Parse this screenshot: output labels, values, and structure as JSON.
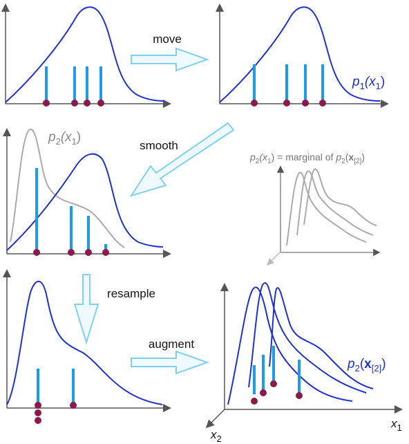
{
  "steps": {
    "move": "move",
    "smooth": "smooth",
    "resample": "resample",
    "augment": "augment"
  },
  "labels": {
    "p1_x1": [
      "p",
      "1",
      "(x",
      "1",
      ")"
    ],
    "p2_x1": [
      "p",
      "2",
      "(x",
      "1",
      ")"
    ],
    "marginal": [
      "p",
      "2",
      "(x",
      "1",
      ") = marginal of ",
      "p",
      "2",
      "(",
      "x",
      "[2]",
      ")"
    ],
    "p2_x2": [
      "p",
      "2",
      "(",
      "x",
      "[2]",
      ")"
    ],
    "axis_x1": [
      "x",
      "1"
    ],
    "axis_x2": [
      "x",
      "2"
    ]
  }
}
